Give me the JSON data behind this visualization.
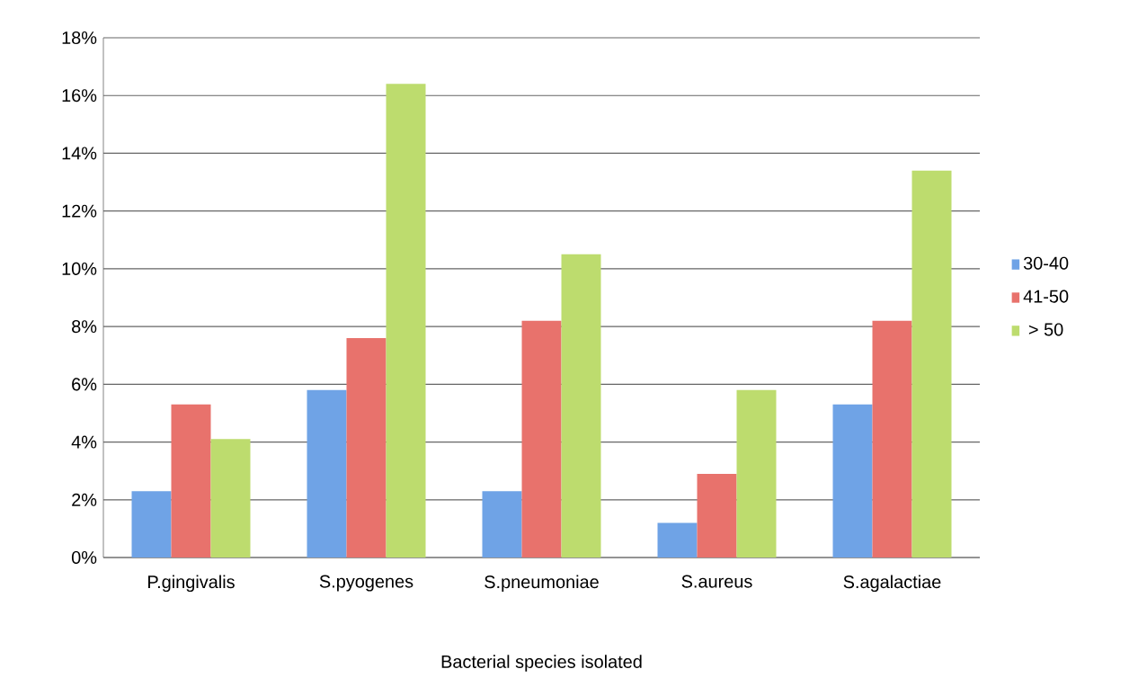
{
  "chart_data": {
    "type": "bar",
    "xlabel": "Bacterial species isolated",
    "categories": [
      "P.gingivalis",
      "S.pyogenes",
      "S.pneumoniae",
      "S.aureus",
      "S.agalactiae"
    ],
    "series": [
      {
        "name": "30-40",
        "color": "#6fa3e6",
        "values": [
          2.3,
          5.8,
          2.3,
          1.2,
          5.3
        ]
      },
      {
        "name": "41-50",
        "color": "#e8726c",
        "values": [
          5.3,
          7.6,
          8.2,
          2.9,
          8.2
        ]
      },
      {
        "name": "> 50",
        "color": "#bddc6e",
        "values": [
          4.1,
          16.4,
          10.5,
          5.8,
          13.4
        ]
      }
    ],
    "ylim": [
      0,
      18
    ],
    "yticks": [
      {
        "value": 0,
        "label": "0%"
      },
      {
        "value": 2,
        "label": "2%"
      },
      {
        "value": 4,
        "label": "4%"
      },
      {
        "value": 6,
        "label": "6%"
      },
      {
        "value": 8,
        "label": "8%"
      },
      {
        "value": 10,
        "label": "10%"
      },
      {
        "value": 12,
        "label": "12%"
      },
      {
        "value": 14,
        "label": "14%"
      },
      {
        "value": 16,
        "label": "16%"
      },
      {
        "value": 18,
        "label": "18%"
      }
    ],
    "grid": "y",
    "legend": "right"
  }
}
